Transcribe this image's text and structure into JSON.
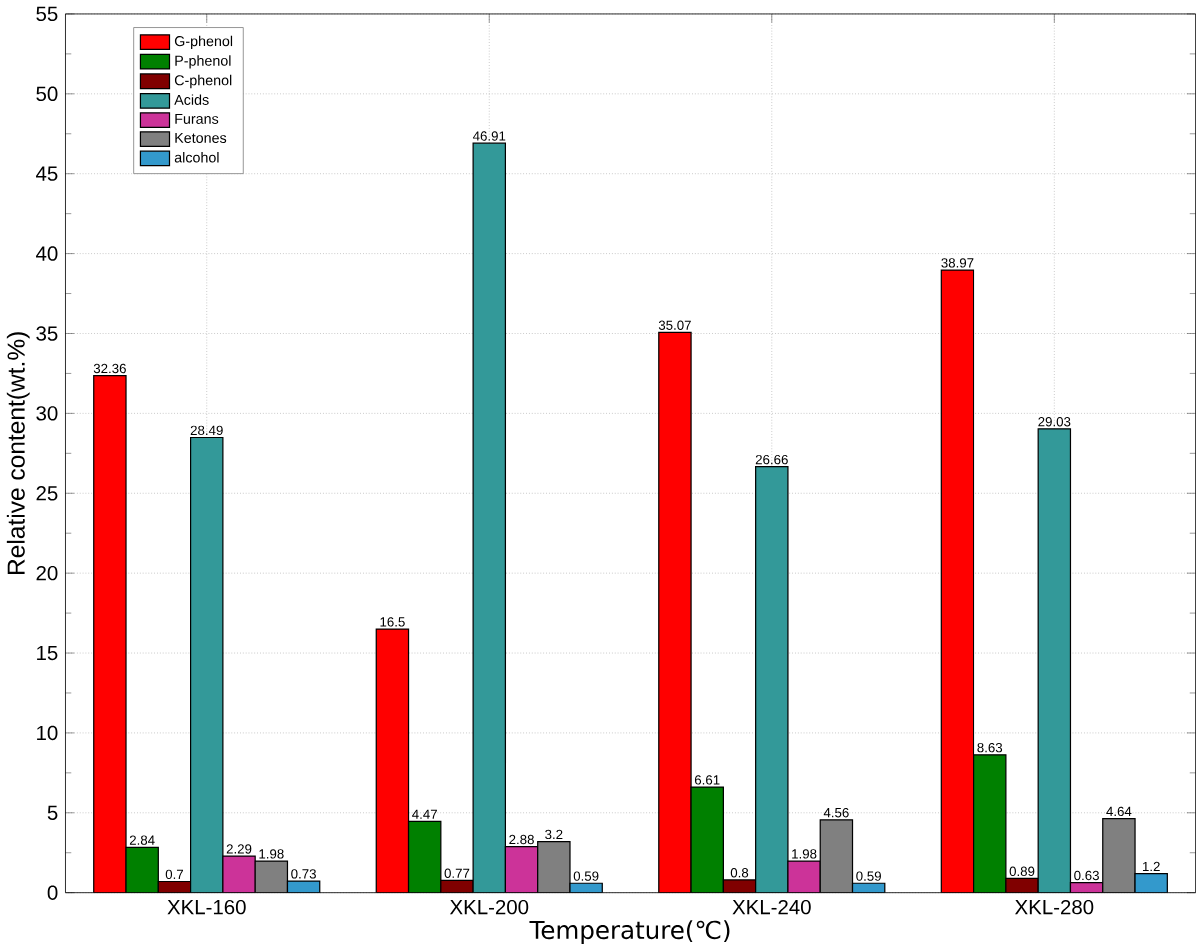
{
  "chart_data": {
    "type": "bar",
    "xlabel": "Temperature(℃)",
    "ylabel": "Relative content(wt.%)",
    "categories": [
      "XKL-160",
      "XKL-200",
      "XKL-240",
      "XKL-280"
    ],
    "series": [
      {
        "name": "G-phenol",
        "color": "#ff0000",
        "values": [
          32.36,
          16.5,
          35.07,
          38.97
        ]
      },
      {
        "name": "P-phenol",
        "color": "#008000",
        "values": [
          2.84,
          4.47,
          6.61,
          8.63
        ]
      },
      {
        "name": "C-phenol",
        "color": "#800000",
        "values": [
          0.7,
          0.77,
          0.8,
          0.89
        ]
      },
      {
        "name": "Acids",
        "color": "#339999",
        "values": [
          28.49,
          46.91,
          26.66,
          29.03
        ]
      },
      {
        "name": "Furans",
        "color": "#cc3399",
        "values": [
          2.29,
          2.88,
          1.98,
          0.63
        ]
      },
      {
        "name": "Ketones",
        "color": "#808080",
        "values": [
          1.98,
          3.2,
          4.56,
          4.64
        ]
      },
      {
        "name": "alcohol",
        "color": "#3399cc",
        "values": [
          0.73,
          0.59,
          0.59,
          1.2
        ]
      }
    ],
    "ylim": [
      0,
      55
    ],
    "yticks": [
      0,
      5,
      10,
      15,
      20,
      25,
      30,
      35,
      40,
      45,
      50,
      55
    ],
    "grid": true,
    "legend": "top left",
    "data_labels": true
  }
}
